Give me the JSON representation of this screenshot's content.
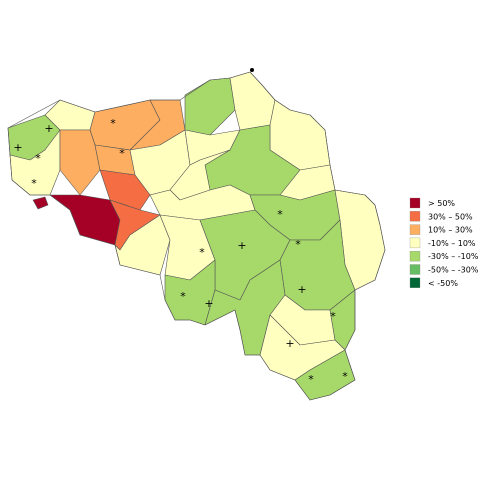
{
  "legend": {
    "items": [
      {
        "label": "> 50%",
        "color": "#a50026"
      },
      {
        "label": "30%  –  50%",
        "color": "#f46d43"
      },
      {
        "label": "10%  –  30%",
        "color": "#fdae61"
      },
      {
        "label": "-10%  –  10%",
        "color": "#ffffbf"
      },
      {
        "label": "-30%  –  -10%",
        "color": "#a6d96a"
      },
      {
        "label": "-50%  –  -30%",
        "color": "#66bd63"
      },
      {
        "label": "< -50%",
        "color": "#006837"
      }
    ]
  },
  "markers": [
    "+",
    "+",
    "+",
    "+",
    "+",
    "+",
    "*",
    "*",
    "*",
    "*",
    "*",
    "*",
    "*",
    "*",
    "*",
    "*",
    "*"
  ]
}
